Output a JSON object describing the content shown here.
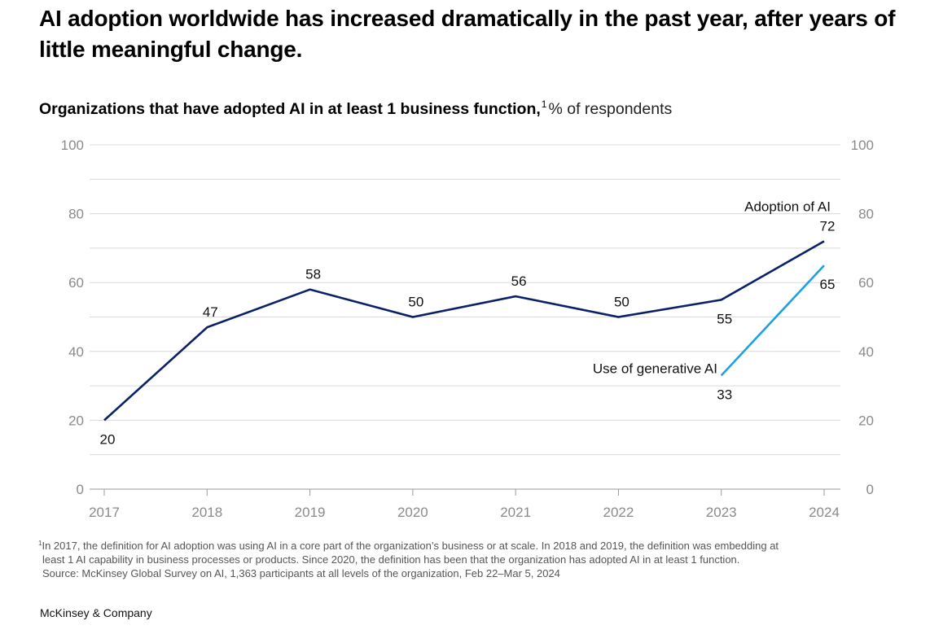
{
  "headline": "AI adoption worldwide has increased dramatically in the past year, after years of little meaningful change.",
  "subtitle": {
    "main": "Organizations that have adopted AI in at least 1 business function,",
    "footnote_marker": "1",
    "unit": "% of respondents"
  },
  "chart_data": {
    "type": "line",
    "title": "Organizations that have adopted AI in at least 1 business function,",
    "ylabel": "% of respondents",
    "x": [
      2017,
      2018,
      2019,
      2020,
      2021,
      2022,
      2023,
      2024
    ],
    "ylim": [
      0,
      100
    ],
    "yticks": [
      0,
      20,
      40,
      60,
      80,
      100
    ],
    "grid": true,
    "series": [
      {
        "name": "Adoption of AI",
        "color": "#0a2168",
        "x": [
          2017,
          2018,
          2019,
          2020,
          2021,
          2022,
          2023,
          2024
        ],
        "values": [
          20,
          47,
          58,
          50,
          56,
          50,
          55,
          72
        ]
      },
      {
        "name": "Use of generative AI",
        "color": "#1ba1e2",
        "x": [
          2023,
          2024
        ],
        "values": [
          33,
          65
        ]
      }
    ]
  },
  "footnotes": {
    "marker": "1",
    "line1": "In 2017, the definition for AI adoption was using AI in a core part of the organization’s business or at scale. In 2018 and 2019, the definition was embedding at",
    "line2": "least 1 AI capability in business processes or products. Since 2020, the definition has been that the organization has adopted AI in at least 1 function.",
    "source": "Source: McKinsey Global Survey on AI, 1,363 participants at all levels of the organization, Feb 22–Mar 5, 2024"
  },
  "brand": "McKinsey & Company"
}
